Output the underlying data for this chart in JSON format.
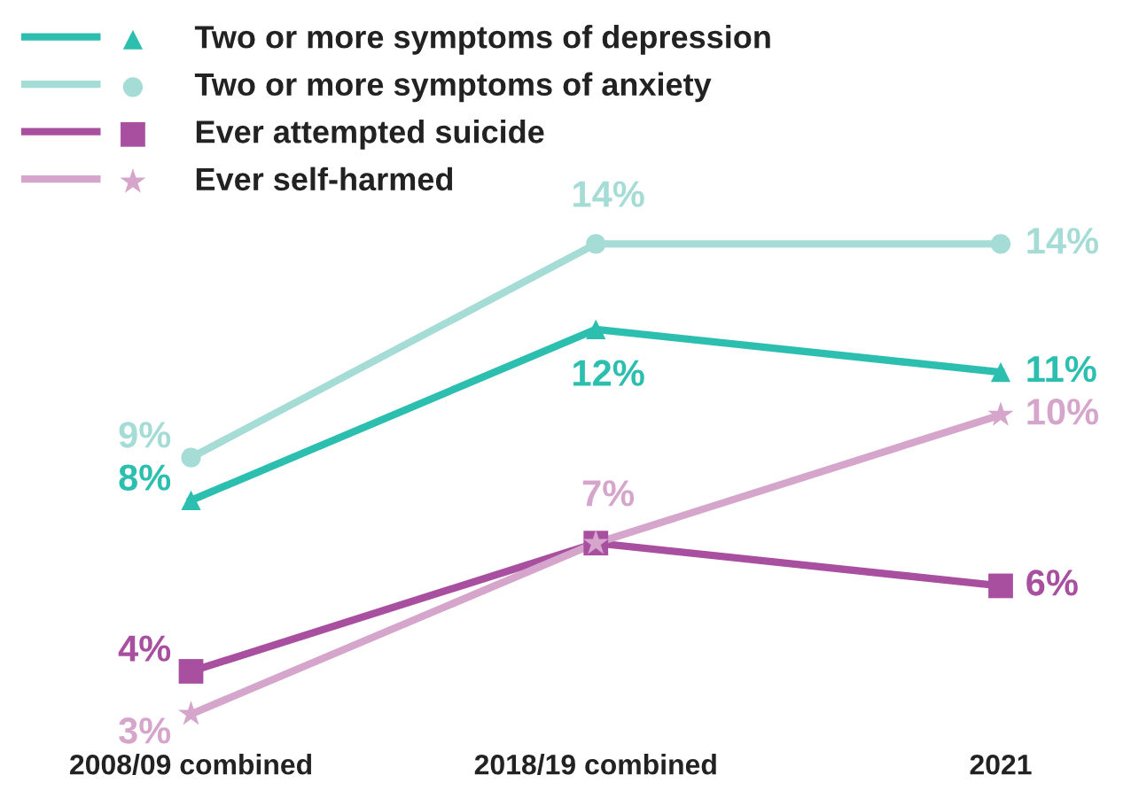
{
  "chart_data": {
    "type": "line",
    "categories": [
      "2008/09 combined",
      "2018/19 combined",
      "2021"
    ],
    "tick_labels": "x",
    "grid": false,
    "legend": "top left",
    "series": [
      {
        "name": "Two or more symptoms of depression",
        "color": "#2cbfb0",
        "marker": "triangle",
        "values": [
          8,
          12,
          11
        ],
        "value_labels": [
          "8%",
          "12%",
          "11%"
        ]
      },
      {
        "name": "Two or more symptoms of anxiety",
        "color": "#a5dcd6",
        "marker": "circle",
        "values": [
          9,
          14,
          14
        ],
        "value_labels": [
          "9%",
          "14%",
          "14%"
        ]
      },
      {
        "name": "Ever attempted suicide",
        "color": "#a84fa0",
        "marker": "square",
        "values": [
          4,
          7,
          6
        ],
        "value_labels": [
          "4%",
          null,
          "6%"
        ]
      },
      {
        "name": "Ever self-harmed",
        "color": "#d5a5cc",
        "marker": "star",
        "values": [
          3,
          7,
          10
        ],
        "value_labels": [
          "3%",
          "7%",
          "10%"
        ]
      }
    ]
  }
}
